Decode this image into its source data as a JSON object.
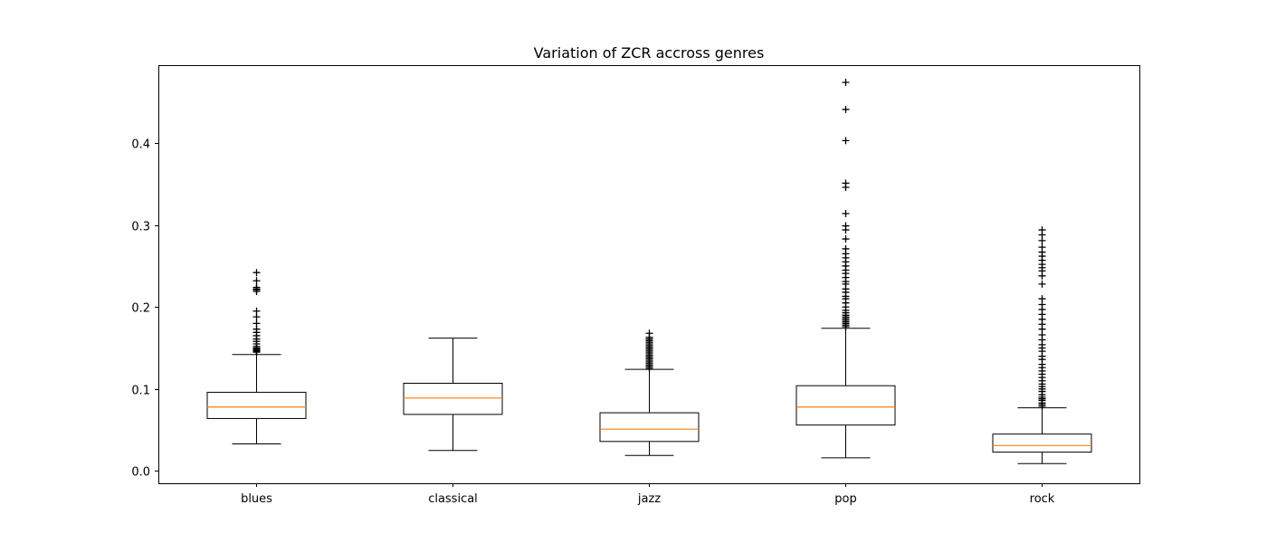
{
  "chart_data": {
    "type": "box",
    "title": "Variation of ZCR accross genres",
    "xlabel": "",
    "ylabel": "",
    "categories": [
      "blues",
      "classical",
      "jazz",
      "pop",
      "rock"
    ],
    "ylim": [
      -0.015,
      0.495
    ],
    "yticks": [
      0.0,
      0.1,
      0.2,
      0.3,
      0.4
    ],
    "ytick_labels": [
      "0.0",
      "0.1",
      "0.2",
      "0.3",
      "0.4"
    ],
    "grid": false,
    "outlier_marker": "+",
    "colors": {
      "box": "#000000",
      "median": "#ff7f0e",
      "outlier": "#000000",
      "frame": "#000000"
    },
    "boxes": [
      {
        "category": "blues",
        "whisker_low": 0.033,
        "q1": 0.064,
        "median": 0.078,
        "q3": 0.096,
        "whisker_high": 0.142,
        "outliers": [
          0.145,
          0.146,
          0.147,
          0.148,
          0.149,
          0.15,
          0.152,
          0.155,
          0.158,
          0.161,
          0.165,
          0.169,
          0.173,
          0.18,
          0.188,
          0.195,
          0.219,
          0.221,
          0.222,
          0.224,
          0.232,
          0.242
        ]
      },
      {
        "category": "classical",
        "whisker_low": 0.025,
        "q1": 0.069,
        "median": 0.089,
        "q3": 0.107,
        "whisker_high": 0.162,
        "outliers": []
      },
      {
        "category": "jazz",
        "whisker_low": 0.019,
        "q1": 0.036,
        "median": 0.051,
        "q3": 0.071,
        "whisker_high": 0.124,
        "outliers": [
          0.125,
          0.127,
          0.129,
          0.131,
          0.133,
          0.135,
          0.137,
          0.139,
          0.141,
          0.143,
          0.145,
          0.147,
          0.149,
          0.151,
          0.153,
          0.155,
          0.157,
          0.159,
          0.161,
          0.163,
          0.168
        ]
      },
      {
        "category": "pop",
        "whisker_low": 0.016,
        "q1": 0.056,
        "median": 0.078,
        "q3": 0.104,
        "whisker_high": 0.174,
        "outliers": [
          0.176,
          0.178,
          0.18,
          0.182,
          0.184,
          0.186,
          0.188,
          0.19,
          0.193,
          0.196,
          0.2,
          0.205,
          0.21,
          0.213,
          0.218,
          0.222,
          0.228,
          0.231,
          0.236,
          0.241,
          0.245,
          0.25,
          0.255,
          0.26,
          0.265,
          0.271,
          0.283,
          0.294,
          0.299,
          0.314,
          0.346,
          0.351,
          0.403,
          0.441,
          0.474
        ]
      },
      {
        "category": "rock",
        "whisker_low": 0.009,
        "q1": 0.023,
        "median": 0.031,
        "q3": 0.045,
        "whisker_high": 0.077,
        "outliers": [
          0.079,
          0.081,
          0.083,
          0.086,
          0.088,
          0.09,
          0.093,
          0.097,
          0.1,
          0.103,
          0.106,
          0.11,
          0.114,
          0.118,
          0.122,
          0.126,
          0.13,
          0.136,
          0.14,
          0.146,
          0.15,
          0.154,
          0.16,
          0.166,
          0.173,
          0.179,
          0.185,
          0.191,
          0.197,
          0.203,
          0.21,
          0.228,
          0.238,
          0.244,
          0.248,
          0.252,
          0.257,
          0.262,
          0.267,
          0.273,
          0.281,
          0.288,
          0.294
        ]
      }
    ]
  }
}
